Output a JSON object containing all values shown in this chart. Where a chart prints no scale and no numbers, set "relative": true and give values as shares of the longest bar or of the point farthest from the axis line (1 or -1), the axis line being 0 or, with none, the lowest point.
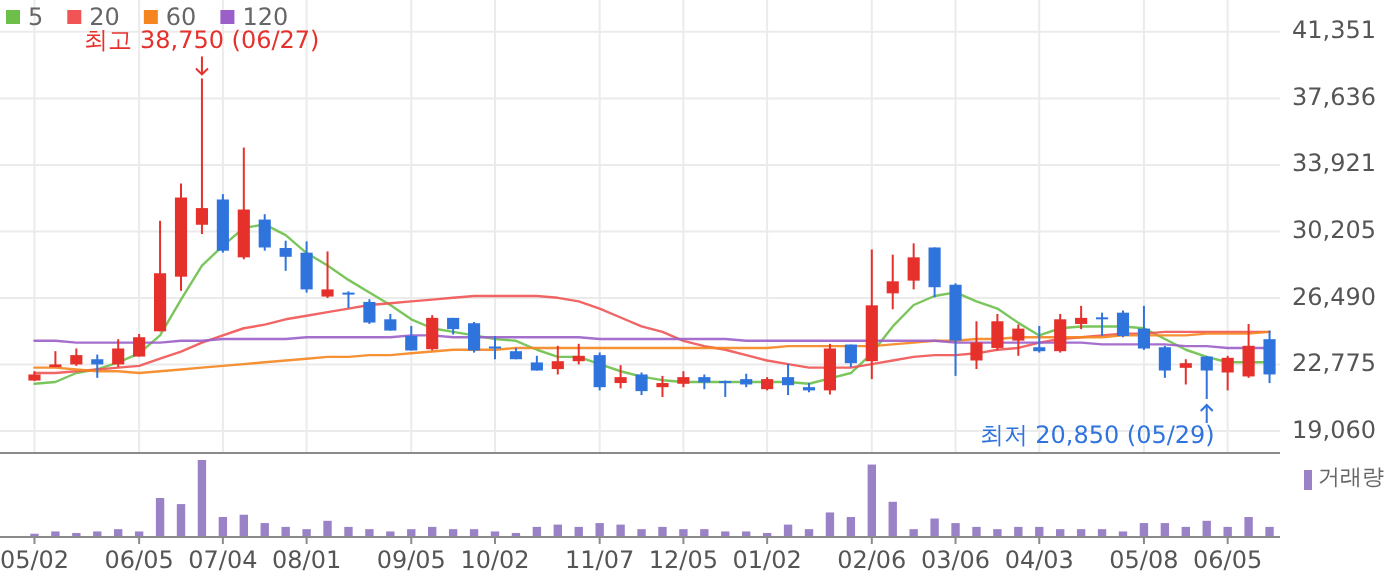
{
  "chart_data": [
    {
      "type": "candlestick",
      "categories": [
        null,
        null,
        null,
        null,
        null,
        null,
        null,
        null,
        null,
        null,
        null,
        null,
        null,
        null,
        null,
        null,
        null,
        null,
        null,
        null,
        null,
        null,
        null,
        null,
        null,
        null,
        null,
        null,
        null,
        null,
        null,
        null,
        null,
        null,
        null,
        null,
        null,
        null,
        null,
        null,
        null,
        null,
        null,
        null,
        null,
        null,
        null,
        null,
        null,
        null,
        null,
        null,
        null,
        null,
        null,
        null,
        null,
        null,
        null,
        null
      ],
      "ohlc": [
        [
          21880,
          22400,
          21850,
          22220
        ],
        [
          22630,
          23520,
          22630,
          22780
        ],
        [
          22780,
          23670,
          22700,
          23300
        ],
        [
          23070,
          23330,
          22030,
          22780
        ],
        [
          22780,
          24190,
          22630,
          23670
        ],
        [
          23220,
          24480,
          23220,
          24300
        ],
        [
          24630,
          30800,
          24630,
          27870
        ],
        [
          27680,
          32880,
          26900,
          32100
        ],
        [
          30580,
          38750,
          30060,
          31510
        ],
        [
          31990,
          32290,
          29020,
          29130
        ],
        [
          28760,
          34890,
          28650,
          31430
        ],
        [
          30870,
          31170,
          29130,
          29310
        ],
        [
          29280,
          29690,
          28010,
          28790
        ],
        [
          29020,
          29650,
          26790,
          26970
        ],
        [
          26570,
          29090,
          26490,
          26970
        ],
        [
          26790,
          26860,
          25930,
          26750
        ],
        [
          26270,
          26420,
          25040,
          25120
        ],
        [
          25300,
          25600,
          24670,
          24670
        ],
        [
          24370,
          24930,
          23560,
          23560
        ],
        [
          23630,
          25530,
          23560,
          25380
        ],
        [
          25380,
          25380,
          24450,
          24750
        ],
        [
          25080,
          25150,
          23440,
          23560
        ],
        [
          23780,
          24370,
          23070,
          23700
        ],
        [
          23520,
          23700,
          23070,
          23070
        ],
        [
          22890,
          23260,
          22440,
          22440
        ],
        [
          22520,
          23820,
          22220,
          22960
        ],
        [
          22960,
          23930,
          22780,
          23260
        ],
        [
          23300,
          23450,
          21330,
          21510
        ],
        [
          21740,
          22740,
          21440,
          22070
        ],
        [
          22220,
          22330,
          21070,
          21290
        ],
        [
          21510,
          22140,
          20960,
          21740
        ],
        [
          21700,
          22400,
          21510,
          22070
        ],
        [
          22070,
          22220,
          21400,
          21770
        ],
        [
          21850,
          21880,
          20960,
          21770
        ],
        [
          21960,
          22260,
          21510,
          21660
        ],
        [
          21400,
          22070,
          21330,
          21960
        ],
        [
          22070,
          22810,
          21070,
          21620
        ],
        [
          21510,
          21740,
          21220,
          21330
        ],
        [
          21330,
          23930,
          21100,
          23670
        ],
        [
          23890,
          23890,
          22630,
          22850
        ],
        [
          22960,
          29200,
          21960,
          26080
        ],
        [
          26750,
          28910,
          25860,
          27420
        ],
        [
          27460,
          29540,
          26970,
          28760
        ],
        [
          29310,
          29310,
          26530,
          27090
        ],
        [
          27230,
          27310,
          22140,
          24110
        ],
        [
          23000,
          25190,
          22520,
          24000
        ],
        [
          23700,
          25600,
          23560,
          25190
        ],
        [
          24110,
          25010,
          23260,
          24780
        ],
        [
          23740,
          24930,
          23440,
          23520
        ],
        [
          23520,
          25600,
          23440,
          25300
        ],
        [
          25040,
          26050,
          24750,
          25380
        ],
        [
          25410,
          25670,
          24370,
          25340
        ],
        [
          25670,
          25790,
          24300,
          24370
        ],
        [
          24780,
          26050,
          23590,
          23670
        ],
        [
          23740,
          23820,
          22030,
          22440
        ],
        [
          22590,
          23070,
          21660,
          22850
        ],
        [
          23220,
          23260,
          20850,
          22440
        ],
        [
          22330,
          23260,
          21330,
          23150
        ],
        [
          22110,
          25040,
          22030,
          23820
        ],
        [
          24190,
          24670,
          21740,
          22220
        ]
      ],
      "colors": [
        "#e5302b",
        "#e5302b",
        "#e5302b",
        "#2f74dd",
        "#e5302b",
        "#e5302b",
        "#e5302b",
        "#e5302b",
        "#e5302b",
        "#2f74dd",
        "#e5302b",
        "#2f74dd",
        "#2f74dd",
        "#2f74dd",
        "#e5302b",
        "#2f74dd",
        "#2f74dd",
        "#2f74dd",
        "#2f74dd",
        "#e5302b",
        "#2f74dd",
        "#2f74dd",
        "#2f74dd",
        "#2f74dd",
        "#2f74dd",
        "#e5302b",
        "#e5302b",
        "#2f74dd",
        "#e5302b",
        "#2f74dd",
        "#e5302b",
        "#e5302b",
        "#2f74dd",
        "#2f74dd",
        "#2f74dd",
        "#e5302b",
        "#2f74dd",
        "#2f74dd",
        "#e5302b",
        "#2f74dd",
        "#e5302b",
        "#e5302b",
        "#e5302b",
        "#2f74dd",
        "#2f74dd",
        "#e5302b",
        "#e5302b",
        "#e5302b",
        "#2f74dd",
        "#e5302b",
        "#e5302b",
        "#2f74dd",
        "#2f74dd",
        "#2f74dd",
        "#2f74dd",
        "#e5302b",
        "#2f74dd",
        "#e5302b",
        "#e5302b",
        "#2f74dd"
      ],
      "series": [
        {
          "name": "5",
          "type": "line",
          "color": "#6cc04a",
          "values": [
            21700,
            21800,
            22300,
            22500,
            22900,
            23400,
            24400,
            26400,
            28300,
            29400,
            30400,
            30600,
            30000,
            29000,
            28300,
            27500,
            26800,
            26100,
            25300,
            24800,
            24600,
            24400,
            24200,
            24100,
            23600,
            23200,
            23200,
            22800,
            22400,
            22100,
            21900,
            21800,
            21800,
            21800,
            21800,
            21800,
            21800,
            21700,
            22000,
            22300,
            23400,
            24900,
            26100,
            26600,
            26800,
            26300,
            25900,
            25100,
            24400,
            24800,
            24900,
            24900,
            24900,
            24800,
            24200,
            23600,
            23200,
            22900,
            22900,
            22900
          ]
        },
        {
          "name": "20",
          "type": "line",
          "color": "#f05454",
          "values": [
            22300,
            22300,
            22400,
            22500,
            22600,
            22700,
            23100,
            23500,
            24000,
            24400,
            24800,
            25000,
            25300,
            25500,
            25700,
            25900,
            26100,
            26200,
            26300,
            26400,
            26500,
            26600,
            26600,
            26600,
            26600,
            26500,
            26300,
            25900,
            25400,
            24900,
            24600,
            24100,
            23800,
            23600,
            23300,
            23000,
            22800,
            22600,
            22600,
            22600,
            22800,
            23000,
            23200,
            23300,
            23300,
            23400,
            23600,
            23700,
            24000,
            24200,
            24300,
            24400,
            24500,
            24500,
            24600,
            24600,
            24600,
            24600,
            24600,
            24600
          ]
        },
        {
          "name": "60",
          "type": "line",
          "color": "#f5861f",
          "values": [
            22600,
            22600,
            22500,
            22400,
            22400,
            22300,
            22400,
            22500,
            22600,
            22700,
            22800,
            22900,
            23000,
            23100,
            23200,
            23200,
            23300,
            23300,
            23400,
            23500,
            23600,
            23600,
            23600,
            23700,
            23700,
            23700,
            23700,
            23700,
            23700,
            23700,
            23700,
            23700,
            23700,
            23700,
            23700,
            23700,
            23800,
            23800,
            23800,
            23800,
            23800,
            23900,
            24000,
            24100,
            24100,
            24200,
            24200,
            24300,
            24300,
            24300,
            24300,
            24300,
            24400,
            24400,
            24400,
            24400,
            24500,
            24500,
            24500,
            24600
          ]
        },
        {
          "name": "120",
          "type": "line",
          "color": "#9b5fc9",
          "values": [
            24100,
            24100,
            24000,
            24000,
            24000,
            24000,
            24000,
            24100,
            24100,
            24200,
            24200,
            24200,
            24200,
            24300,
            24300,
            24300,
            24300,
            24300,
            24400,
            24400,
            24300,
            24300,
            24300,
            24300,
            24300,
            24300,
            24300,
            24200,
            24200,
            24200,
            24200,
            24200,
            24200,
            24200,
            24100,
            24100,
            24100,
            24100,
            24100,
            24100,
            24100,
            24100,
            24100,
            24100,
            24000,
            24000,
            24000,
            24000,
            24000,
            24000,
            24000,
            23900,
            23900,
            23900,
            23900,
            23800,
            23800,
            23700,
            23700,
            23700
          ]
        }
      ],
      "ylim": [
        17890,
        43130
      ],
      "yticks": [
        {
          "value": 19060,
          "label": "19,060"
        },
        {
          "value": 22775,
          "label": "22,775"
        },
        {
          "value": 26490,
          "label": "26,490"
        },
        {
          "value": 30205,
          "label": "30,205"
        },
        {
          "value": 33921,
          "label": "33,921"
        },
        {
          "value": 37636,
          "label": "37,636"
        },
        {
          "value": 41351,
          "label": "41,351"
        }
      ],
      "grid": true,
      "legend": "top left",
      "tick_labels": "y",
      "annotations": [
        "최고 38,750 (06/27)",
        "최저 20,850 (05/29)"
      ]
    },
    {
      "type": "bar",
      "relative": true,
      "categories": [
        "05/02",
        null,
        null,
        null,
        null,
        "06/05",
        null,
        null,
        null,
        "07/04",
        null,
        null,
        null,
        "08/01",
        null,
        null,
        null,
        null,
        "09/05",
        null,
        null,
        null,
        "10/02",
        null,
        null,
        null,
        null,
        "11/07",
        null,
        null,
        null,
        "12/05",
        null,
        null,
        null,
        "01/02",
        null,
        null,
        null,
        null,
        "02/06",
        null,
        null,
        null,
        "03/06",
        null,
        null,
        null,
        "04/03",
        null,
        null,
        null,
        null,
        "05/08",
        null,
        null,
        null,
        "06/05",
        null,
        null
      ],
      "series": [
        {
          "name": "거래량",
          "color": "#9a82c6",
          "values": [
            0.03,
            0.06,
            0.04,
            0.06,
            0.09,
            0.06,
            0.5,
            0.42,
            1,
            0.25,
            0.28,
            0.17,
            0.12,
            0.09,
            0.2,
            0.12,
            0.09,
            0.06,
            0.09,
            0.12,
            0.09,
            0.09,
            0.06,
            0.04,
            0.12,
            0.15,
            0.12,
            0.17,
            0.15,
            0.09,
            0.12,
            0.09,
            0.09,
            0.06,
            0.06,
            0.04,
            0.15,
            0.09,
            0.31,
            0.25,
            0.94,
            0.45,
            0.09,
            0.23,
            0.17,
            0.12,
            0.09,
            0.12,
            0.12,
            0.09,
            0.09,
            0.09,
            0.06,
            0.17,
            0.17,
            0.12,
            0.2,
            0.12,
            0.25,
            0.12
          ]
        }
      ],
      "legend": "top right",
      "tick_labels": "x"
    }
  ]
}
